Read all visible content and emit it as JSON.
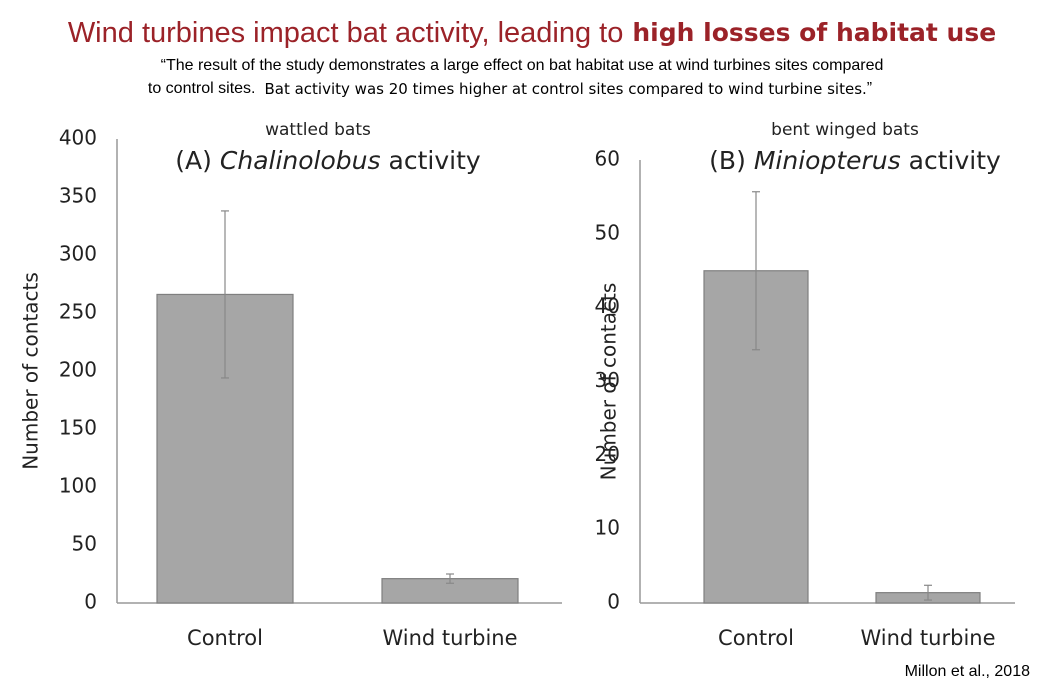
{
  "header": {
    "title": "Wind turbines impact bat activity, leading to",
    "title_bold": "high losses of habitat use",
    "quote_line1": "“The result of the study demonstrates a large effect on bat habitat use at wind turbines sites compared",
    "quote_line2": "to control sites.",
    "quote_bold": "Bat activity was 20 times higher at control sites compared to wind turbine sites.",
    "quote_close": "”"
  },
  "chart_data": [
    {
      "type": "bar",
      "subtitle": "wattled bats",
      "title_parts": [
        "(A)",
        "Chalinolobus",
        "activity"
      ],
      "ylabel": "Number of contacts",
      "categories": [
        "Control",
        "Wind turbine"
      ],
      "values": [
        266,
        21
      ],
      "errors": [
        72,
        4
      ],
      "color": "#a6a6a6",
      "ylim": [
        0,
        400
      ],
      "yticks": [
        0,
        50,
        100,
        150,
        200,
        250,
        300,
        350,
        400
      ]
    },
    {
      "type": "bar",
      "subtitle": "bent winged bats",
      "title_parts": [
        "(B)",
        "Miniopterus",
        "activity"
      ],
      "ylabel": "Number of contacts",
      "categories": [
        "Control",
        "Wind turbine"
      ],
      "values": [
        45,
        1.4
      ],
      "errors": [
        10.7,
        1
      ],
      "color": "#a6a6a6",
      "ylim": [
        0,
        60
      ],
      "yticks": [
        0,
        10,
        20,
        30,
        40,
        50,
        60
      ]
    }
  ],
  "source": "Millon et al., 2018"
}
